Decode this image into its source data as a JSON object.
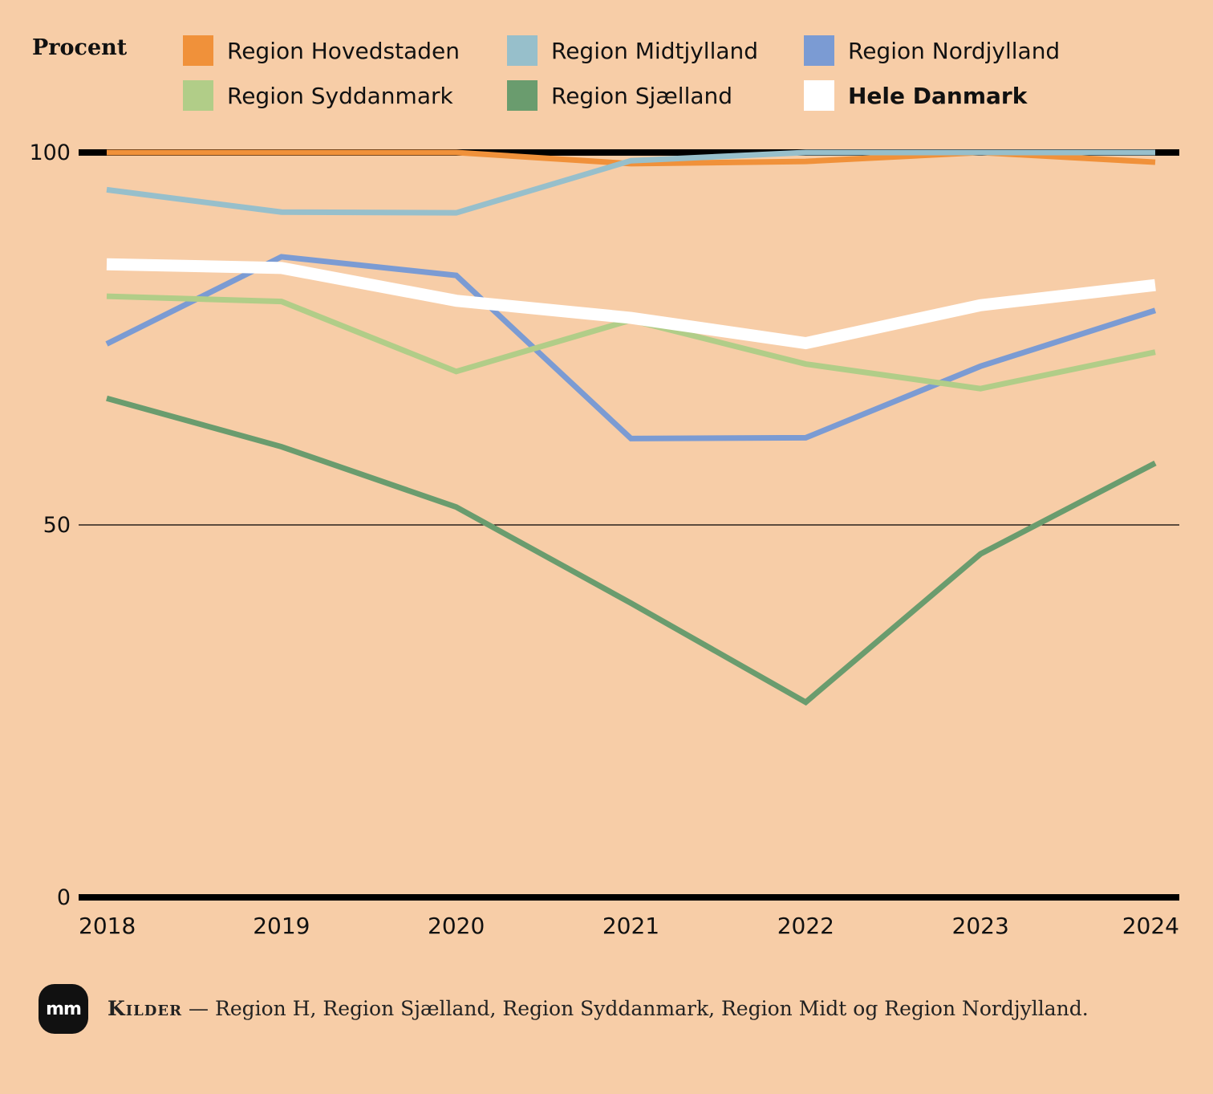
{
  "chart_data": {
    "type": "line",
    "title": "",
    "ylabel": "Procent",
    "xlabel": "",
    "ylim": [
      0,
      100
    ],
    "yticks": [
      0,
      50,
      100
    ],
    "x": [
      "2018",
      "2019",
      "2020",
      "2021",
      "2022",
      "2023",
      "2024"
    ],
    "legend_placement": "top",
    "grid": true,
    "series": [
      {
        "name": "Region Hovedstaden",
        "color": "#f0913a",
        "values": [
          100,
          100,
          100,
          98.5,
          98.8,
          100,
          98.7
        ]
      },
      {
        "name": "Region Midtjylland",
        "color": "#97bfcb",
        "values": [
          95,
          92,
          91.9,
          98.9,
          100,
          100,
          100
        ]
      },
      {
        "name": "Region Nordjylland",
        "color": "#7b9bd3",
        "values": [
          74.3,
          86,
          83.5,
          61.6,
          61.7,
          71.3,
          78.8
        ]
      },
      {
        "name": "Region Syddanmark",
        "color": "#b1cd88",
        "values": [
          80.7,
          80,
          70.6,
          77.5,
          71.6,
          68.3,
          73.2
        ]
      },
      {
        "name": "Region Sjælland",
        "color": "#6a9c6e",
        "values": [
          67,
          60.5,
          52.4,
          39.5,
          26.2,
          46.1,
          58.3
        ]
      },
      {
        "name": "Hele Danmark",
        "color": "#ffffff",
        "values": [
          85,
          84.5,
          80.1,
          77.8,
          74.4,
          79.5,
          82.2
        ],
        "bold": true
      }
    ]
  },
  "source": {
    "label": "Kilder",
    "separator": " — ",
    "text": "Region H, Region Sjælland, Region Syddanmark, Region Midt og Region Nordjylland."
  },
  "logo": {
    "text": "mm"
  }
}
